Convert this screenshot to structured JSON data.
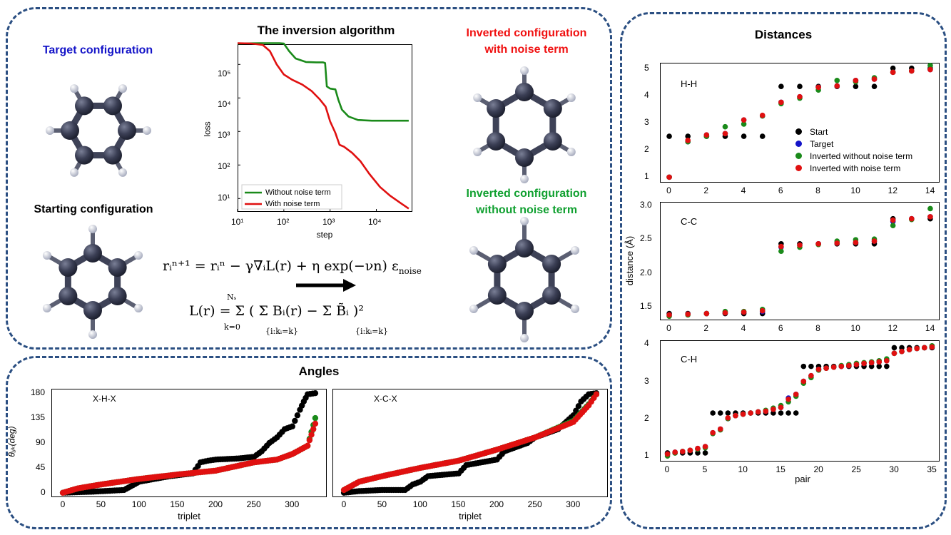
{
  "panels": {
    "top_left": {
      "target_title": "Target configuration",
      "starting_title": "Starting configuration",
      "algorithm_title": "The inversion algorithm",
      "inverted_noise_title_1": "Inverted configuration",
      "inverted_noise_title_2": "with noise term",
      "inverted_nonoise_title_1": "Inverted configuration",
      "inverted_nonoise_title_2": "without noise term"
    },
    "angles_title": "Angles",
    "distances_title": "Distances"
  },
  "equations": {
    "update_lhs": "r",
    "update": "rᵢⁿ⁺¹ = rᵢⁿ − γ∇ᵢL(r) + η exp(−νn) ε",
    "update_sub": "noise",
    "loss": "L(r) = Σ ( Σ Bᵢ(r) − Σ B̃ᵢ )²",
    "loss_sum_top": "Nₛ",
    "loss_sum_bottom": "k=0",
    "loss_inner_bottom_1": "{i:kᵢ=k}",
    "loss_inner_bottom_2": "{i:kᵢ=k}"
  },
  "colors": {
    "target": "#1414c8",
    "inverted_noise": "#f01010",
    "inverted_nonoise": "#10a030",
    "start": "#000000",
    "frame": "#2b4f82"
  },
  "loss_chart": {
    "ylabel": "loss",
    "xlabel": "step",
    "xticks": [
      "10¹",
      "10²",
      "10³",
      "10⁴"
    ],
    "yticks": [
      "10⁵",
      "10⁴",
      "10³",
      "10²",
      "10¹"
    ],
    "legend": [
      "Without noise term",
      "With noise term"
    ]
  },
  "distance_legend": [
    "Start",
    "Target",
    "Inverted without noise term",
    "Inverted with noise term"
  ],
  "hh_label": "H-H",
  "cc_label": "C-C",
  "ch_label": "C-H",
  "xhx_label": "X-H-X",
  "xcx_label": "X-C-X",
  "distance_ylabel": "distance (Å)",
  "pair_label": "pair",
  "triplet_label": "triplet",
  "theta_label": "θᵢⱼₖ(deg)",
  "hh_yticks": [
    "5",
    "4",
    "3",
    "2",
    "1"
  ],
  "cc_yticks": [
    "3.0",
    "2.5",
    "2.0",
    "1.5"
  ],
  "ch_yticks": [
    "4",
    "3",
    "2",
    "1"
  ],
  "hh_xticks": [
    "0",
    "2",
    "4",
    "6",
    "8",
    "10",
    "12",
    "14"
  ],
  "ch_xticks": [
    "0",
    "5",
    "10",
    "15",
    "20",
    "25",
    "30",
    "35"
  ],
  "angle_yticks": [
    "180",
    "135",
    "90",
    "45",
    "0"
  ],
  "angle_xticks": [
    "0",
    "50",
    "100",
    "150",
    "200",
    "250",
    "300"
  ],
  "chart_data": [
    {
      "type": "line",
      "title": "",
      "xlabel": "step",
      "ylabel": "loss",
      "xscale": "log",
      "yscale": "log",
      "xlim": [
        10,
        60000
      ],
      "ylim": [
        4,
        400000
      ],
      "series": [
        {
          "name": "Without noise term",
          "color": "#1a8a1a",
          "x": [
            10,
            30,
            80,
            100,
            130,
            180,
            300,
            500,
            700,
            780,
            850,
            1000,
            1300,
            1500,
            1800,
            2500,
            4000,
            8000,
            20000,
            50000
          ],
          "y": [
            420000,
            430000,
            430000,
            420000,
            250000,
            150000,
            118000,
            115000,
            115000,
            110000,
            22000,
            19000,
            18000,
            9000,
            4500,
            2800,
            2200,
            2100,
            2100,
            2100
          ]
        },
        {
          "name": "With noise term",
          "color": "#e01010",
          "x": [
            10,
            20,
            35,
            50,
            70,
            100,
            150,
            250,
            400,
            600,
            800,
            1000,
            1300,
            1600,
            2000,
            3000,
            4500,
            7000,
            12000,
            20000,
            35000,
            50000
          ],
          "y": [
            430000,
            420000,
            380000,
            250000,
            100000,
            50000,
            35000,
            25000,
            16000,
            9000,
            5500,
            2000,
            900,
            400,
            350,
            230,
            130,
            55,
            22,
            12,
            7,
            5
          ]
        }
      ]
    },
    {
      "type": "scatter",
      "title": "H-H",
      "xlim": [
        -0.5,
        14.5
      ],
      "ylim": [
        0.8,
        5.2
      ],
      "series": [
        {
          "name": "Start",
          "x": [
            0,
            1,
            2,
            3,
            4,
            5,
            6,
            7,
            8,
            9,
            10,
            11,
            12,
            13,
            14
          ],
          "y": [
            2.5,
            2.5,
            2.5,
            2.5,
            2.5,
            2.5,
            4.33,
            4.33,
            4.33,
            4.33,
            4.33,
            4.33,
            5.0,
            5.0,
            5.0
          ]
        },
        {
          "name": "Target",
          "x": [
            0,
            1,
            2,
            3,
            4,
            5,
            6,
            7,
            8,
            9,
            10,
            11,
            12,
            13,
            14
          ],
          "y": [
            1.0,
            2.3,
            2.55,
            2.6,
            3.1,
            3.25,
            3.75,
            3.95,
            4.3,
            4.35,
            4.55,
            4.6,
            4.85,
            4.9,
            4.95
          ]
        },
        {
          "name": "Inverted without noise term",
          "x": [
            0,
            1,
            2,
            3,
            4,
            5,
            6,
            7,
            8,
            9,
            10,
            11,
            12,
            13,
            14
          ],
          "y": [
            1.0,
            2.3,
            2.5,
            2.85,
            2.95,
            3.25,
            3.7,
            3.9,
            4.2,
            4.55,
            4.5,
            4.65,
            4.85,
            4.9,
            5.1
          ]
        },
        {
          "name": "Inverted with noise term",
          "x": [
            0,
            1,
            2,
            3,
            4,
            5,
            6,
            7,
            8,
            9,
            10,
            11,
            12,
            13,
            14
          ],
          "y": [
            1.0,
            2.35,
            2.55,
            2.6,
            3.1,
            3.27,
            3.75,
            3.95,
            4.3,
            4.35,
            4.55,
            4.6,
            4.85,
            4.9,
            4.95
          ]
        }
      ]
    },
    {
      "type": "scatter",
      "title": "C-C",
      "ylabel": "distance (Å)",
      "xlim": [
        -0.5,
        14.5
      ],
      "ylim": [
        1.3,
        3.05
      ],
      "series": [
        {
          "name": "Start",
          "x": [
            0,
            1,
            2,
            3,
            4,
            5,
            6,
            7,
            8,
            9,
            10,
            11,
            12,
            13,
            14
          ],
          "y": [
            1.4,
            1.4,
            1.4,
            1.4,
            1.4,
            1.4,
            2.43,
            2.43,
            2.43,
            2.43,
            2.43,
            2.43,
            2.8,
            2.8,
            2.8
          ]
        },
        {
          "name": "Target",
          "x": [
            0,
            1,
            2,
            3,
            4,
            5,
            6,
            7,
            8,
            9,
            10,
            11,
            12,
            13,
            14
          ],
          "y": [
            1.38,
            1.39,
            1.4,
            1.41,
            1.42,
            1.43,
            2.38,
            2.41,
            2.43,
            2.44,
            2.45,
            2.47,
            2.76,
            2.8,
            2.83
          ]
        },
        {
          "name": "Inverted without noise term",
          "x": [
            0,
            1,
            2,
            3,
            4,
            5,
            6,
            7,
            8,
            9,
            10,
            11,
            12,
            13,
            14
          ],
          "y": [
            1.36,
            1.38,
            1.4,
            1.43,
            1.43,
            1.46,
            2.32,
            2.38,
            2.42,
            2.47,
            2.49,
            2.5,
            2.7,
            2.79,
            2.95
          ]
        },
        {
          "name": "Inverted with noise term",
          "x": [
            0,
            1,
            2,
            3,
            4,
            5,
            6,
            7,
            8,
            9,
            10,
            11,
            12,
            13,
            14
          ],
          "y": [
            1.38,
            1.39,
            1.4,
            1.41,
            1.42,
            1.44,
            2.39,
            2.41,
            2.43,
            2.44,
            2.45,
            2.47,
            2.78,
            2.8,
            2.83
          ]
        }
      ]
    },
    {
      "type": "scatter",
      "title": "C-H",
      "xlabel": "pair",
      "xlim": [
        -1,
        36
      ],
      "ylim": [
        0.85,
        4.1
      ],
      "series": [
        {
          "name": "Start",
          "x": [
            0,
            1,
            2,
            3,
            4,
            5,
            6,
            7,
            8,
            9,
            10,
            11,
            12,
            13,
            14,
            15,
            16,
            17,
            18,
            19,
            20,
            21,
            22,
            23,
            24,
            25,
            26,
            27,
            28,
            29,
            30,
            31,
            32,
            33,
            34,
            35
          ],
          "y": [
            1.08,
            1.08,
            1.08,
            1.08,
            1.08,
            1.08,
            2.15,
            2.15,
            2.15,
            2.15,
            2.15,
            2.15,
            2.15,
            2.15,
            2.15,
            2.15,
            2.15,
            2.15,
            3.4,
            3.4,
            3.4,
            3.4,
            3.4,
            3.4,
            3.4,
            3.4,
            3.4,
            3.4,
            3.4,
            3.4,
            3.9,
            3.9,
            3.9,
            3.9,
            3.9,
            3.9
          ]
        },
        {
          "name": "Target",
          "x": [
            0,
            1,
            2,
            3,
            4,
            5,
            6,
            7,
            8,
            9,
            10,
            11,
            12,
            13,
            14,
            15,
            16,
            17,
            18,
            19,
            20,
            21,
            22,
            23,
            24,
            25,
            26,
            27,
            28,
            29,
            30,
            31,
            32,
            33,
            34,
            35
          ],
          "y": [
            1.05,
            1.1,
            1.12,
            1.15,
            1.2,
            1.25,
            1.62,
            1.72,
            2.0,
            2.08,
            2.12,
            2.15,
            2.18,
            2.2,
            2.25,
            2.3,
            2.55,
            2.65,
            3.0,
            3.15,
            3.32,
            3.35,
            3.38,
            3.4,
            3.42,
            3.45,
            3.48,
            3.5,
            3.52,
            3.55,
            3.75,
            3.8,
            3.85,
            3.88,
            3.9,
            3.92
          ]
        },
        {
          "name": "Inverted without noise term",
          "x": [
            0,
            1,
            2,
            3,
            4,
            5,
            6,
            7,
            8,
            9,
            10,
            11,
            12,
            13,
            14,
            15,
            16,
            17,
            18,
            19,
            20,
            21,
            22,
            23,
            24,
            25,
            26,
            27,
            28,
            29,
            30,
            31,
            32,
            33,
            34,
            35
          ],
          "y": [
            1.0,
            1.08,
            1.12,
            1.15,
            1.18,
            1.22,
            1.6,
            1.7,
            2.0,
            2.08,
            2.12,
            2.15,
            2.18,
            2.22,
            2.28,
            2.35,
            2.45,
            2.6,
            2.95,
            3.1,
            3.3,
            3.35,
            3.38,
            3.42,
            3.45,
            3.48,
            3.5,
            3.52,
            3.55,
            3.6,
            3.75,
            3.8,
            3.85,
            3.88,
            3.9,
            3.95
          ]
        },
        {
          "name": "Inverted with noise term",
          "x": [
            0,
            1,
            2,
            3,
            4,
            5,
            6,
            7,
            8,
            9,
            10,
            11,
            12,
            13,
            14,
            15,
            16,
            17,
            18,
            19,
            20,
            21,
            22,
            23,
            24,
            25,
            26,
            27,
            28,
            29,
            30,
            31,
            32,
            33,
            34,
            35
          ],
          "y": [
            1.05,
            1.1,
            1.12,
            1.15,
            1.2,
            1.25,
            1.62,
            1.72,
            2.02,
            2.08,
            2.12,
            2.15,
            2.18,
            2.2,
            2.25,
            2.3,
            2.52,
            2.65,
            3.0,
            3.15,
            3.32,
            3.35,
            3.38,
            3.4,
            3.42,
            3.45,
            3.48,
            3.5,
            3.52,
            3.55,
            3.75,
            3.8,
            3.85,
            3.88,
            3.9,
            3.92
          ]
        }
      ]
    },
    {
      "type": "scatter",
      "title": "X-H-X",
      "xlabel": "triplet",
      "ylabel": "θᵢⱼₖ(deg)",
      "xlim": [
        -15,
        345
      ],
      "ylim": [
        -8,
        188
      ],
      "series": [
        {
          "name": "Start",
          "x": [
            0,
            40,
            80,
            100,
            140,
            170,
            180,
            190,
            200,
            230,
            250,
            260,
            270,
            280,
            290,
            300,
            310,
            315,
            320,
            330
          ],
          "y": [
            0,
            2,
            5,
            20,
            30,
            35,
            55,
            58,
            60,
            62,
            65,
            75,
            90,
            100,
            115,
            120,
            150,
            165,
            178,
            180
          ]
        },
        {
          "name": "Inverted without noise term",
          "x": [
            0,
            20,
            50,
            100,
            150,
            200,
            250,
            280,
            300,
            320,
            325,
            330
          ],
          "y": [
            0,
            8,
            15,
            25,
            33,
            40,
            55,
            60,
            70,
            85,
            110,
            135
          ]
        },
        {
          "name": "Inverted with noise term",
          "x": [
            0,
            20,
            50,
            100,
            150,
            200,
            250,
            280,
            300,
            320,
            325,
            330
          ],
          "y": [
            0,
            8,
            15,
            25,
            33,
            40,
            55,
            60,
            70,
            85,
            105,
            125
          ]
        }
      ]
    },
    {
      "type": "scatter",
      "title": "X-C-X",
      "xlabel": "triplet",
      "xlim": [
        -15,
        345
      ],
      "ylim": [
        -8,
        188
      ],
      "series": [
        {
          "name": "Start",
          "x": [
            0,
            20,
            50,
            80,
            90,
            100,
            110,
            150,
            160,
            200,
            210,
            240,
            250,
            280,
            300,
            310,
            320,
            330
          ],
          "y": [
            0,
            3,
            5,
            5,
            15,
            20,
            30,
            35,
            50,
            60,
            75,
            90,
            100,
            115,
            140,
            165,
            178,
            180
          ]
        },
        {
          "name": "Inverted without noise term",
          "x": [
            0,
            20,
            50,
            100,
            150,
            200,
            250,
            300,
            320,
            330
          ],
          "y": [
            5,
            20,
            30,
            45,
            58,
            78,
            100,
            130,
            160,
            178
          ]
        },
        {
          "name": "Inverted with noise term",
          "x": [
            0,
            20,
            50,
            100,
            150,
            200,
            250,
            300,
            320,
            330
          ],
          "y": [
            5,
            20,
            30,
            45,
            58,
            78,
            100,
            128,
            158,
            178
          ]
        }
      ]
    }
  ]
}
